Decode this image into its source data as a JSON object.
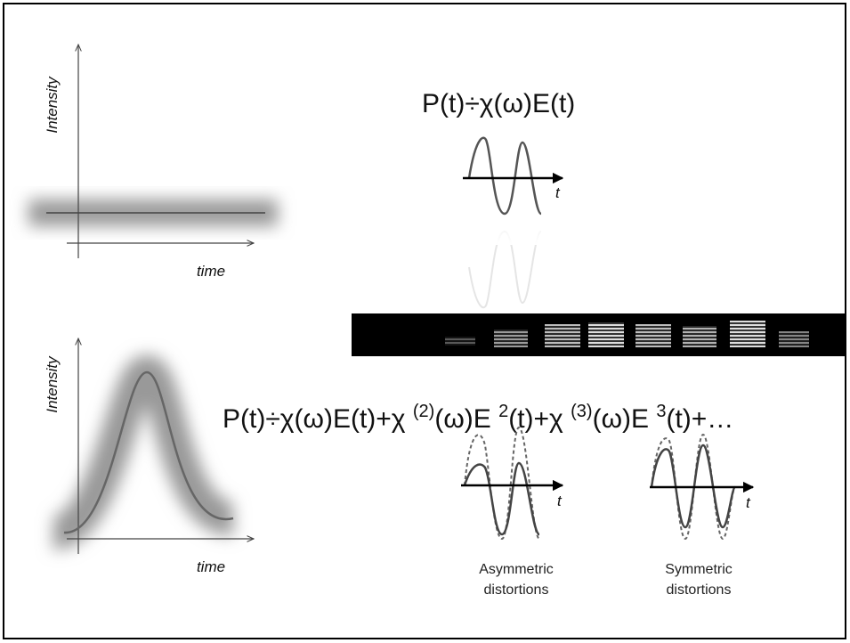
{
  "top_plot": {
    "y_label": "Intensity",
    "x_label": "time"
  },
  "bottom_plot": {
    "y_label": "Intensity",
    "x_label": "time"
  },
  "linear_equation": "P(t)÷χ(ω)E(t)",
  "nonlinear_equation": [
    "P(t)÷χ(ω)E(t)+χ ",
    "(2)",
    "(ω)E ",
    "2",
    "(t)+χ ",
    "(3)",
    "(ω)E ",
    "3",
    "(t)+…"
  ],
  "wave_icons": [
    {
      "axis_label": "t"
    },
    {
      "axis_label": "t",
      "caption": [
        "Asymmetric",
        "distortions"
      ]
    },
    {
      "axis_label": "t",
      "caption": [
        "Symmetric",
        "distortions"
      ]
    }
  ]
}
